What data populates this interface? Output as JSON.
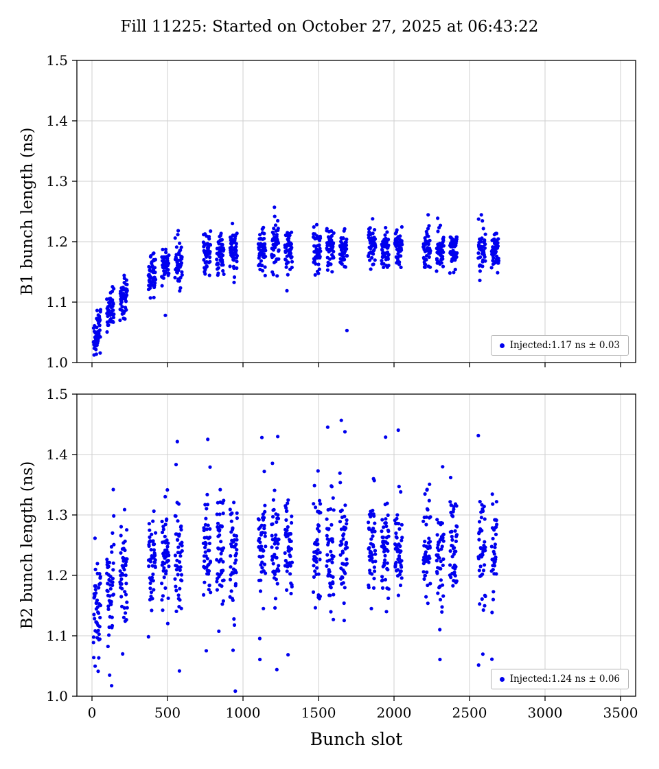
{
  "title": "Fill 11225: Started on October 27, 2025 at 06:43:22",
  "chart_data": [
    {
      "type": "scatter",
      "subplot": "top",
      "ylabel": "B1 bunch length (ns)",
      "xlabel": "",
      "xlim": [
        -100,
        3600
      ],
      "ylim": [
        1.0,
        1.5
      ],
      "xticks": [
        0,
        500,
        1000,
        1500,
        2000,
        2500,
        3000,
        3500
      ],
      "yticks": [
        1.0,
        1.1,
        1.2,
        1.3,
        1.4,
        1.5
      ],
      "grid": true,
      "marker_color": "#0000ee",
      "legend": {
        "label": "Injected:1.17 ns ± 0.03",
        "position": "lower right"
      },
      "series": [
        {
          "name": "Injected",
          "summary_mean_ns": 1.17,
          "summary_std_ns": 0.03,
          "x_range_slots": [
            10,
            2700
          ],
          "generator": {
            "seed": 11225,
            "first_slot": 10,
            "train_len": 48,
            "gaps": [
              40,
              40,
              140
            ],
            "x_max": 2700,
            "mean_base": 1.19,
            "mean_dip": 0.16,
            "mean_tau": 300,
            "sigma": 0.018,
            "outlier_frac": 0.02,
            "outlier_sigma": 0.045
          }
        }
      ]
    },
    {
      "type": "scatter",
      "subplot": "bottom",
      "ylabel": "B2 bunch length (ns)",
      "xlabel": "Bunch slot",
      "xlim": [
        -100,
        3600
      ],
      "ylim": [
        1.0,
        1.5
      ],
      "xticks": [
        0,
        500,
        1000,
        1500,
        2000,
        2500,
        3000,
        3500
      ],
      "yticks": [
        1.0,
        1.1,
        1.2,
        1.3,
        1.4,
        1.5
      ],
      "grid": true,
      "marker_color": "#0000ee",
      "legend": {
        "label": "Injected:1.24 ns ± 0.06",
        "position": "lower right"
      },
      "series": [
        {
          "name": "Injected",
          "summary_mean_ns": 1.24,
          "summary_std_ns": 0.06,
          "x_range_slots": [
            10,
            2680
          ],
          "generator": {
            "seed": 2025,
            "first_slot": 10,
            "train_len": 48,
            "gaps": [
              40,
              40,
              140
            ],
            "x_max": 2680,
            "mean_base": 1.245,
            "mean_dip": 0.12,
            "mean_tau": 220,
            "sigma": 0.042,
            "outlier_frac": 0.1,
            "outlier_sigma": 0.1
          }
        }
      ]
    }
  ]
}
